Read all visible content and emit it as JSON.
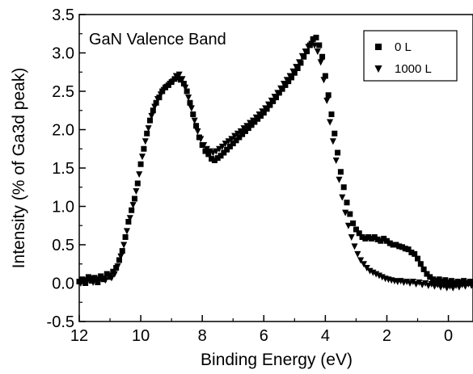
{
  "chart_data": {
    "type": "scatter",
    "title": "",
    "annotation": "GaN Valence Band",
    "xlabel": "Binding Energy (eV)",
    "ylabel": "Intensity (% of Ga3d peak)",
    "xlim": [
      12,
      -0.8
    ],
    "x_reversed": true,
    "ylim": [
      -0.5,
      3.5
    ],
    "x_ticks": [
      12,
      10,
      8,
      6,
      4,
      2,
      0
    ],
    "x_tick_labels": [
      "12",
      "10",
      "8",
      "6",
      "4",
      "2",
      "0"
    ],
    "y_ticks": [
      -0.5,
      0.0,
      0.5,
      1.0,
      1.5,
      2.0,
      2.5,
      3.0,
      3.5
    ],
    "y_tick_labels": [
      "-0.5",
      "0.0",
      "0.5",
      "1.0",
      "1.5",
      "2.0",
      "2.5",
      "3.0",
      "3.5"
    ],
    "grid": false,
    "legend_position": "top-right",
    "series": [
      {
        "name": "0 L",
        "marker": "square",
        "color": "#000000",
        "points": [
          [
            12.0,
            0.02
          ],
          [
            11.9,
            0.05
          ],
          [
            11.8,
            0.0
          ],
          [
            11.7,
            0.08
          ],
          [
            11.6,
            0.03
          ],
          [
            11.5,
            0.07
          ],
          [
            11.4,
            0.01
          ],
          [
            11.3,
            0.09
          ],
          [
            11.2,
            0.05
          ],
          [
            11.1,
            0.12
          ],
          [
            11.0,
            0.08
          ],
          [
            10.9,
            0.15
          ],
          [
            10.8,
            0.2
          ],
          [
            10.7,
            0.3
          ],
          [
            10.6,
            0.42
          ],
          [
            10.5,
            0.6
          ],
          [
            10.4,
            0.8
          ],
          [
            10.3,
            0.95
          ],
          [
            10.2,
            1.1
          ],
          [
            10.1,
            1.3
          ],
          [
            10.0,
            1.55
          ],
          [
            9.9,
            1.75
          ],
          [
            9.8,
            1.95
          ],
          [
            9.7,
            2.12
          ],
          [
            9.6,
            2.25
          ],
          [
            9.5,
            2.35
          ],
          [
            9.4,
            2.42
          ],
          [
            9.3,
            2.5
          ],
          [
            9.2,
            2.55
          ],
          [
            9.1,
            2.58
          ],
          [
            9.0,
            2.62
          ],
          [
            8.9,
            2.66
          ],
          [
            8.8,
            2.68
          ],
          [
            8.7,
            2.65
          ],
          [
            8.6,
            2.6
          ],
          [
            8.5,
            2.5
          ],
          [
            8.4,
            2.35
          ],
          [
            8.3,
            2.2
          ],
          [
            8.2,
            2.05
          ],
          [
            8.1,
            1.9
          ],
          [
            8.0,
            1.8
          ],
          [
            7.9,
            1.72
          ],
          [
            7.8,
            1.68
          ],
          [
            7.7,
            1.62
          ],
          [
            7.6,
            1.6
          ],
          [
            7.5,
            1.63
          ],
          [
            7.4,
            1.66
          ],
          [
            7.3,
            1.7
          ],
          [
            7.2,
            1.74
          ],
          [
            7.1,
            1.78
          ],
          [
            7.0,
            1.82
          ],
          [
            6.9,
            1.86
          ],
          [
            6.8,
            1.9
          ],
          [
            6.7,
            1.94
          ],
          [
            6.6,
            1.98
          ],
          [
            6.5,
            2.02
          ],
          [
            6.4,
            2.06
          ],
          [
            6.3,
            2.1
          ],
          [
            6.2,
            2.14
          ],
          [
            6.1,
            2.18
          ],
          [
            6.0,
            2.22
          ],
          [
            5.9,
            2.27
          ],
          [
            5.8,
            2.32
          ],
          [
            5.7,
            2.37
          ],
          [
            5.6,
            2.42
          ],
          [
            5.5,
            2.48
          ],
          [
            5.4,
            2.53
          ],
          [
            5.3,
            2.58
          ],
          [
            5.2,
            2.63
          ],
          [
            5.1,
            2.68
          ],
          [
            5.0,
            2.74
          ],
          [
            4.9,
            2.8
          ],
          [
            4.8,
            2.87
          ],
          [
            4.7,
            2.95
          ],
          [
            4.6,
            3.02
          ],
          [
            4.5,
            3.1
          ],
          [
            4.4,
            3.18
          ],
          [
            4.3,
            3.2
          ],
          [
            4.2,
            3.1
          ],
          [
            4.1,
            2.95
          ],
          [
            4.0,
            2.7
          ],
          [
            3.9,
            2.45
          ],
          [
            3.8,
            2.2
          ],
          [
            3.7,
            1.95
          ],
          [
            3.6,
            1.7
          ],
          [
            3.5,
            1.45
          ],
          [
            3.4,
            1.25
          ],
          [
            3.3,
            1.05
          ],
          [
            3.2,
            0.9
          ],
          [
            3.1,
            0.78
          ],
          [
            3.0,
            0.7
          ],
          [
            2.9,
            0.65
          ],
          [
            2.8,
            0.6
          ],
          [
            2.7,
            0.58
          ],
          [
            2.6,
            0.6
          ],
          [
            2.5,
            0.58
          ],
          [
            2.4,
            0.6
          ],
          [
            2.3,
            0.57
          ],
          [
            2.2,
            0.55
          ],
          [
            2.1,
            0.58
          ],
          [
            2.0,
            0.55
          ],
          [
            1.9,
            0.52
          ],
          [
            1.8,
            0.5
          ],
          [
            1.7,
            0.5
          ],
          [
            1.6,
            0.48
          ],
          [
            1.5,
            0.47
          ],
          [
            1.4,
            0.45
          ],
          [
            1.3,
            0.44
          ],
          [
            1.2,
            0.4
          ],
          [
            1.1,
            0.38
          ],
          [
            1.0,
            0.32
          ],
          [
            0.9,
            0.25
          ],
          [
            0.8,
            0.18
          ],
          [
            0.7,
            0.12
          ],
          [
            0.6,
            0.08
          ],
          [
            0.5,
            0.05
          ],
          [
            0.4,
            0.03
          ],
          [
            0.3,
            0.05
          ],
          [
            0.2,
            0.02
          ],
          [
            0.1,
            0.04
          ],
          [
            0.0,
            0.01
          ],
          [
            -0.1,
            0.03
          ],
          [
            -0.2,
            0.0
          ],
          [
            -0.3,
            0.02
          ],
          [
            -0.4,
            0.01
          ],
          [
            -0.5,
            0.03
          ],
          [
            -0.6,
            0.0
          ],
          [
            -0.7,
            0.02
          ]
        ]
      },
      {
        "name": "1000 L",
        "marker": "triangle-down",
        "color": "#000000",
        "points": [
          [
            11.95,
            0.0
          ],
          [
            11.85,
            0.04
          ],
          [
            11.75,
            0.02
          ],
          [
            11.65,
            0.06
          ],
          [
            11.55,
            0.01
          ],
          [
            11.45,
            0.05
          ],
          [
            11.35,
            0.03
          ],
          [
            11.25,
            0.06
          ],
          [
            11.15,
            0.04
          ],
          [
            11.05,
            0.1
          ],
          [
            10.95,
            0.07
          ],
          [
            10.85,
            0.12
          ],
          [
            10.75,
            0.22
          ],
          [
            10.65,
            0.35
          ],
          [
            10.55,
            0.5
          ],
          [
            10.45,
            0.68
          ],
          [
            10.35,
            0.85
          ],
          [
            10.25,
            1.02
          ],
          [
            10.15,
            1.2
          ],
          [
            10.05,
            1.42
          ],
          [
            9.95,
            1.65
          ],
          [
            9.85,
            1.85
          ],
          [
            9.75,
            2.02
          ],
          [
            9.65,
            2.18
          ],
          [
            9.55,
            2.3
          ],
          [
            9.45,
            2.4
          ],
          [
            9.35,
            2.46
          ],
          [
            9.25,
            2.52
          ],
          [
            9.15,
            2.56
          ],
          [
            9.05,
            2.6
          ],
          [
            8.95,
            2.63
          ],
          [
            8.85,
            2.7
          ],
          [
            8.75,
            2.72
          ],
          [
            8.65,
            2.66
          ],
          [
            8.55,
            2.55
          ],
          [
            8.45,
            2.42
          ],
          [
            8.35,
            2.28
          ],
          [
            8.25,
            2.12
          ],
          [
            8.15,
            1.98
          ],
          [
            8.05,
            1.88
          ],
          [
            7.95,
            1.8
          ],
          [
            7.85,
            1.75
          ],
          [
            7.75,
            1.72
          ],
          [
            7.65,
            1.7
          ],
          [
            7.55,
            1.72
          ],
          [
            7.45,
            1.75
          ],
          [
            7.35,
            1.78
          ],
          [
            7.25,
            1.82
          ],
          [
            7.15,
            1.85
          ],
          [
            7.05,
            1.88
          ],
          [
            6.95,
            1.92
          ],
          [
            6.85,
            1.95
          ],
          [
            6.75,
            1.98
          ],
          [
            6.65,
            2.02
          ],
          [
            6.55,
            2.05
          ],
          [
            6.45,
            2.09
          ],
          [
            6.35,
            2.12
          ],
          [
            6.25,
            2.16
          ],
          [
            6.15,
            2.2
          ],
          [
            6.05,
            2.24
          ],
          [
            5.95,
            2.28
          ],
          [
            5.85,
            2.33
          ],
          [
            5.75,
            2.38
          ],
          [
            5.65,
            2.43
          ],
          [
            5.55,
            2.48
          ],
          [
            5.45,
            2.54
          ],
          [
            5.35,
            2.6
          ],
          [
            5.25,
            2.65
          ],
          [
            5.15,
            2.7
          ],
          [
            5.05,
            2.76
          ],
          [
            4.95,
            2.82
          ],
          [
            4.85,
            2.88
          ],
          [
            4.75,
            2.96
          ],
          [
            4.65,
            3.02
          ],
          [
            4.55,
            3.08
          ],
          [
            4.45,
            3.12
          ],
          [
            4.35,
            3.1
          ],
          [
            4.25,
            3.02
          ],
          [
            4.15,
            2.88
          ],
          [
            4.05,
            2.65
          ],
          [
            3.95,
            2.38
          ],
          [
            3.85,
            2.1
          ],
          [
            3.75,
            1.85
          ],
          [
            3.65,
            1.6
          ],
          [
            3.55,
            1.35
          ],
          [
            3.45,
            1.12
          ],
          [
            3.35,
            0.92
          ],
          [
            3.25,
            0.75
          ],
          [
            3.15,
            0.6
          ],
          [
            3.05,
            0.48
          ],
          [
            2.95,
            0.38
          ],
          [
            2.85,
            0.3
          ],
          [
            2.75,
            0.25
          ],
          [
            2.65,
            0.2
          ],
          [
            2.55,
            0.16
          ],
          [
            2.45,
            0.14
          ],
          [
            2.35,
            0.12
          ],
          [
            2.25,
            0.1
          ],
          [
            2.15,
            0.08
          ],
          [
            2.05,
            0.06
          ],
          [
            1.95,
            0.05
          ],
          [
            1.85,
            0.04
          ],
          [
            1.75,
            0.03
          ],
          [
            1.65,
            0.02
          ],
          [
            1.55,
            0.03
          ],
          [
            1.45,
            0.01
          ],
          [
            1.35,
            0.02
          ],
          [
            1.25,
            0.0
          ],
          [
            1.15,
            0.02
          ],
          [
            1.05,
            -0.01
          ],
          [
            0.95,
            0.01
          ],
          [
            0.85,
            -0.02
          ],
          [
            0.75,
            0.0
          ],
          [
            0.65,
            -0.03
          ],
          [
            0.55,
            -0.01
          ],
          [
            0.45,
            -0.04
          ],
          [
            0.35,
            -0.02
          ],
          [
            0.25,
            -0.05
          ],
          [
            0.15,
            -0.03
          ],
          [
            0.05,
            -0.06
          ],
          [
            -0.05,
            -0.04
          ],
          [
            -0.15,
            -0.06
          ],
          [
            -0.25,
            -0.03
          ],
          [
            -0.35,
            -0.05
          ],
          [
            -0.45,
            -0.02
          ],
          [
            -0.55,
            -0.04
          ],
          [
            -0.65,
            -0.01
          ],
          [
            -0.75,
            -0.03
          ]
        ]
      }
    ]
  }
}
